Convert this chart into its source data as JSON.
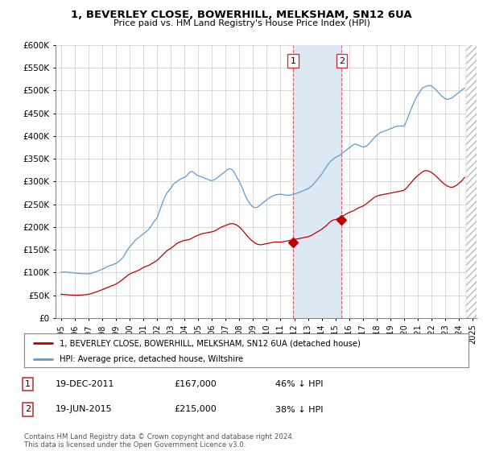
{
  "title": "1, BEVERLEY CLOSE, BOWERHILL, MELKSHAM, SN12 6UA",
  "subtitle": "Price paid vs. HM Land Registry's House Price Index (HPI)",
  "legend_line1": "1, BEVERLEY CLOSE, BOWERHILL, MELKSHAM, SN12 6UA (detached house)",
  "legend_line2": "HPI: Average price, detached house, Wiltshire",
  "table_rows": [
    {
      "num": "1",
      "date": "19-DEC-2011",
      "price": "£167,000",
      "pct": "46% ↓ HPI"
    },
    {
      "num": "2",
      "date": "19-JUN-2015",
      "price": "£215,000",
      "pct": "38% ↓ HPI"
    }
  ],
  "footnote": "Contains HM Land Registry data © Crown copyright and database right 2024.\nThis data is licensed under the Open Government Licence v3.0.",
  "hpi_color": "#5b9bd5",
  "price_color": "#c00000",
  "background_color": "#ffffff",
  "grid_color": "#cccccc",
  "annotation_bg": "#dce9f5",
  "vline_color": "#e06060",
  "ylim": [
    0,
    600000
  ],
  "yticks": [
    0,
    50000,
    100000,
    150000,
    200000,
    250000,
    300000,
    350000,
    400000,
    450000,
    500000,
    550000,
    600000
  ],
  "xlim_start": 1994.6,
  "xlim_end": 2025.3,
  "hatch_start": 2024.5,
  "hpi_data_x": [
    1995.0,
    1995.083,
    1995.167,
    1995.25,
    1995.333,
    1995.417,
    1995.5,
    1995.583,
    1995.667,
    1995.75,
    1995.833,
    1995.917,
    1996.0,
    1996.083,
    1996.167,
    1996.25,
    1996.333,
    1996.417,
    1996.5,
    1996.583,
    1996.667,
    1996.75,
    1996.833,
    1996.917,
    1997.0,
    1997.083,
    1997.167,
    1997.25,
    1997.333,
    1997.417,
    1997.5,
    1997.583,
    1997.667,
    1997.75,
    1997.833,
    1997.917,
    1998.0,
    1998.083,
    1998.167,
    1998.25,
    1998.333,
    1998.417,
    1998.5,
    1998.583,
    1998.667,
    1998.75,
    1998.833,
    1998.917,
    1999.0,
    1999.083,
    1999.167,
    1999.25,
    1999.333,
    1999.417,
    1999.5,
    1999.583,
    1999.667,
    1999.75,
    1999.833,
    1999.917,
    2000.0,
    2000.083,
    2000.167,
    2000.25,
    2000.333,
    2000.417,
    2000.5,
    2000.583,
    2000.667,
    2000.75,
    2000.833,
    2000.917,
    2001.0,
    2001.083,
    2001.167,
    2001.25,
    2001.333,
    2001.417,
    2001.5,
    2001.583,
    2001.667,
    2001.75,
    2001.833,
    2001.917,
    2002.0,
    2002.083,
    2002.167,
    2002.25,
    2002.333,
    2002.417,
    2002.5,
    2002.583,
    2002.667,
    2002.75,
    2002.833,
    2002.917,
    2003.0,
    2003.083,
    2003.167,
    2003.25,
    2003.333,
    2003.417,
    2003.5,
    2003.583,
    2003.667,
    2003.75,
    2003.833,
    2003.917,
    2004.0,
    2004.083,
    2004.167,
    2004.25,
    2004.333,
    2004.417,
    2004.5,
    2004.583,
    2004.667,
    2004.75,
    2004.833,
    2004.917,
    2005.0,
    2005.083,
    2005.167,
    2005.25,
    2005.333,
    2005.417,
    2005.5,
    2005.583,
    2005.667,
    2005.75,
    2005.833,
    2005.917,
    2006.0,
    2006.083,
    2006.167,
    2006.25,
    2006.333,
    2006.417,
    2006.5,
    2006.583,
    2006.667,
    2006.75,
    2006.833,
    2006.917,
    2007.0,
    2007.083,
    2007.167,
    2007.25,
    2007.333,
    2007.417,
    2007.5,
    2007.583,
    2007.667,
    2007.75,
    2007.833,
    2007.917,
    2008.0,
    2008.083,
    2008.167,
    2008.25,
    2008.333,
    2008.417,
    2008.5,
    2008.583,
    2008.667,
    2008.75,
    2008.833,
    2008.917,
    2009.0,
    2009.083,
    2009.167,
    2009.25,
    2009.333,
    2009.417,
    2009.5,
    2009.583,
    2009.667,
    2009.75,
    2009.833,
    2009.917,
    2010.0,
    2010.083,
    2010.167,
    2010.25,
    2010.333,
    2010.417,
    2010.5,
    2010.583,
    2010.667,
    2010.75,
    2010.833,
    2010.917,
    2011.0,
    2011.083,
    2011.167,
    2011.25,
    2011.333,
    2011.417,
    2011.5,
    2011.583,
    2011.667,
    2011.75,
    2011.833,
    2011.917,
    2012.0,
    2012.083,
    2012.167,
    2012.25,
    2012.333,
    2012.417,
    2012.5,
    2012.583,
    2012.667,
    2012.75,
    2012.833,
    2012.917,
    2013.0,
    2013.083,
    2013.167,
    2013.25,
    2013.333,
    2013.417,
    2013.5,
    2013.583,
    2013.667,
    2013.75,
    2013.833,
    2013.917,
    2014.0,
    2014.083,
    2014.167,
    2014.25,
    2014.333,
    2014.417,
    2014.5,
    2014.583,
    2014.667,
    2014.75,
    2014.833,
    2014.917,
    2015.0,
    2015.083,
    2015.167,
    2015.25,
    2015.333,
    2015.417,
    2015.5,
    2015.583,
    2015.667,
    2015.75,
    2015.833,
    2015.917,
    2016.0,
    2016.083,
    2016.167,
    2016.25,
    2016.333,
    2016.417,
    2016.5,
    2016.583,
    2016.667,
    2016.75,
    2016.833,
    2016.917,
    2017.0,
    2017.083,
    2017.167,
    2017.25,
    2017.333,
    2017.417,
    2017.5,
    2017.583,
    2017.667,
    2017.75,
    2017.833,
    2017.917,
    2018.0,
    2018.083,
    2018.167,
    2018.25,
    2018.333,
    2018.417,
    2018.5,
    2018.583,
    2018.667,
    2018.75,
    2018.833,
    2018.917,
    2019.0,
    2019.083,
    2019.167,
    2019.25,
    2019.333,
    2019.417,
    2019.5,
    2019.583,
    2019.667,
    2019.75,
    2019.833,
    2019.917,
    2020.0,
    2020.083,
    2020.167,
    2020.25,
    2020.333,
    2020.417,
    2020.5,
    2020.583,
    2020.667,
    2020.75,
    2020.833,
    2020.917,
    2021.0,
    2021.083,
    2021.167,
    2021.25,
    2021.333,
    2021.417,
    2021.5,
    2021.583,
    2021.667,
    2021.75,
    2021.833,
    2021.917,
    2022.0,
    2022.083,
    2022.167,
    2022.25,
    2022.333,
    2022.417,
    2022.5,
    2022.583,
    2022.667,
    2022.75,
    2022.833,
    2022.917,
    2023.0,
    2023.083,
    2023.167,
    2023.25,
    2023.333,
    2023.417,
    2023.5,
    2023.583,
    2023.667,
    2023.75,
    2023.833,
    2023.917,
    2024.0,
    2024.083,
    2024.167,
    2024.25,
    2024.333,
    2024.417
  ],
  "hpi_data_y": [
    100000,
    100500,
    101000,
    101200,
    101000,
    100800,
    100500,
    100300,
    100000,
    99800,
    99500,
    99200,
    98800,
    98500,
    98200,
    98000,
    97800,
    97600,
    97500,
    97400,
    97300,
    97200,
    97100,
    97000,
    97200,
    97500,
    98000,
    98800,
    99500,
    100200,
    101000,
    102000,
    103000,
    104000,
    105000,
    106000,
    107000,
    108000,
    109500,
    111000,
    112500,
    113500,
    114500,
    115500,
    116000,
    117000,
    118000,
    119000,
    120000,
    121500,
    123000,
    125000,
    127000,
    130000,
    133000,
    137000,
    141000,
    145000,
    149000,
    153000,
    156000,
    159000,
    162000,
    165000,
    168000,
    171000,
    173000,
    175000,
    177000,
    179000,
    181000,
    183000,
    185000,
    187000,
    189000,
    191000,
    193000,
    196000,
    199000,
    203000,
    207000,
    211000,
    214000,
    217000,
    220000,
    227000,
    234000,
    241000,
    248000,
    255000,
    261000,
    267000,
    272000,
    276000,
    279000,
    282000,
    285000,
    289000,
    293000,
    296000,
    298000,
    299000,
    301000,
    303000,
    305000,
    306000,
    307000,
    308000,
    309000,
    311000,
    313000,
    316000,
    319000,
    321000,
    322000,
    322000,
    320000,
    318000,
    316000,
    314000,
    313000,
    312000,
    311000,
    310000,
    309000,
    308000,
    307000,
    306000,
    305000,
    304000,
    303000,
    302000,
    302000,
    303000,
    304000,
    305000,
    307000,
    309000,
    311000,
    313000,
    315000,
    317000,
    319000,
    321000,
    323000,
    325000,
    327000,
    328000,
    328000,
    327000,
    325000,
    322000,
    318000,
    313000,
    308000,
    304000,
    300000,
    295000,
    289000,
    283000,
    276000,
    270000,
    265000,
    260000,
    256000,
    252000,
    249000,
    246000,
    244000,
    243000,
    243000,
    243000,
    244000,
    246000,
    248000,
    250000,
    252000,
    254000,
    256000,
    258000,
    260000,
    262000,
    264000,
    265000,
    267000,
    268000,
    269000,
    270000,
    271000,
    271000,
    272000,
    272000,
    272000,
    272000,
    271000,
    271000,
    270000,
    270000,
    270000,
    270000,
    270000,
    270000,
    271000,
    272000,
    273000,
    273000,
    274000,
    275000,
    276000,
    277000,
    278000,
    279000,
    280000,
    281000,
    282000,
    283000,
    284000,
    286000,
    288000,
    290000,
    292000,
    295000,
    298000,
    301000,
    304000,
    307000,
    310000,
    313000,
    316000,
    320000,
    324000,
    328000,
    332000,
    336000,
    339000,
    342000,
    345000,
    347000,
    349000,
    351000,
    353000,
    354000,
    356000,
    357000,
    358000,
    360000,
    362000,
    364000,
    366000,
    368000,
    370000,
    372000,
    374000,
    376000,
    378000,
    380000,
    381000,
    382000,
    382000,
    381000,
    380000,
    379000,
    378000,
    377000,
    376000,
    376000,
    377000,
    378000,
    380000,
    382000,
    385000,
    388000,
    391000,
    394000,
    396000,
    399000,
    401000,
    403000,
    405000,
    407000,
    408000,
    409000,
    410000,
    411000,
    412000,
    413000,
    414000,
    415000,
    416000,
    417000,
    418000,
    419000,
    420000,
    421000,
    422000,
    422000,
    422000,
    422000,
    422000,
    422000,
    422000,
    426000,
    432000,
    438000,
    445000,
    452000,
    458000,
    464000,
    470000,
    476000,
    481000,
    486000,
    490000,
    494000,
    498000,
    502000,
    505000,
    507000,
    508000,
    509000,
    510000,
    511000,
    511000,
    511000,
    510000,
    508000,
    506000,
    504000,
    502000,
    499000,
    496000,
    493000,
    490000,
    488000,
    486000,
    484000,
    482000,
    481000,
    481000,
    481000,
    482000,
    483000,
    484000,
    486000,
    488000,
    490000,
    492000,
    494000,
    496000,
    498000,
    500000,
    502000,
    504000,
    505000
  ],
  "price_data_x": [
    1995.0,
    1995.083,
    1995.167,
    1995.25,
    1995.333,
    1995.417,
    1995.5,
    1995.583,
    1995.667,
    1995.75,
    1995.833,
    1995.917,
    1996.0,
    1996.083,
    1996.167,
    1996.25,
    1996.333,
    1996.417,
    1996.5,
    1996.583,
    1996.667,
    1996.75,
    1996.833,
    1996.917,
    1997.0,
    1997.083,
    1997.167,
    1997.25,
    1997.333,
    1997.417,
    1997.5,
    1997.583,
    1997.667,
    1997.75,
    1997.833,
    1997.917,
    1998.0,
    1998.083,
    1998.167,
    1998.25,
    1998.333,
    1998.417,
    1998.5,
    1998.583,
    1998.667,
    1998.75,
    1998.833,
    1998.917,
    1999.0,
    1999.083,
    1999.167,
    1999.25,
    1999.333,
    1999.417,
    1999.5,
    1999.583,
    1999.667,
    1999.75,
    1999.833,
    1999.917,
    2000.0,
    2000.083,
    2000.167,
    2000.25,
    2000.333,
    2000.417,
    2000.5,
    2000.583,
    2000.667,
    2000.75,
    2000.833,
    2000.917,
    2001.0,
    2001.083,
    2001.167,
    2001.25,
    2001.333,
    2001.417,
    2001.5,
    2001.583,
    2001.667,
    2001.75,
    2001.833,
    2001.917,
    2002.0,
    2002.083,
    2002.167,
    2002.25,
    2002.333,
    2002.417,
    2002.5,
    2002.583,
    2002.667,
    2002.75,
    2002.833,
    2002.917,
    2003.0,
    2003.083,
    2003.167,
    2003.25,
    2003.333,
    2003.417,
    2003.5,
    2003.583,
    2003.667,
    2003.75,
    2003.833,
    2003.917,
    2004.0,
    2004.083,
    2004.167,
    2004.25,
    2004.333,
    2004.417,
    2004.5,
    2004.583,
    2004.667,
    2004.75,
    2004.833,
    2004.917,
    2005.0,
    2005.083,
    2005.167,
    2005.25,
    2005.333,
    2005.417,
    2005.5,
    2005.583,
    2005.667,
    2005.75,
    2005.833,
    2005.917,
    2006.0,
    2006.083,
    2006.167,
    2006.25,
    2006.333,
    2006.417,
    2006.5,
    2006.583,
    2006.667,
    2006.75,
    2006.833,
    2006.917,
    2007.0,
    2007.083,
    2007.167,
    2007.25,
    2007.333,
    2007.417,
    2007.5,
    2007.583,
    2007.667,
    2007.75,
    2007.833,
    2007.917,
    2008.0,
    2008.083,
    2008.167,
    2008.25,
    2008.333,
    2008.417,
    2008.5,
    2008.583,
    2008.667,
    2008.75,
    2008.833,
    2008.917,
    2009.0,
    2009.083,
    2009.167,
    2009.25,
    2009.333,
    2009.417,
    2009.5,
    2009.583,
    2009.667,
    2009.75,
    2009.833,
    2009.917,
    2010.0,
    2010.083,
    2010.167,
    2010.25,
    2010.333,
    2010.417,
    2010.5,
    2010.583,
    2010.667,
    2010.75,
    2010.833,
    2010.917,
    2011.0,
    2011.083,
    2011.167,
    2011.25,
    2011.333,
    2011.417,
    2011.5,
    2011.583,
    2011.667,
    2011.75,
    2011.833,
    2011.917,
    2012.0,
    2012.083,
    2012.167,
    2012.25,
    2012.333,
    2012.417,
    2012.5,
    2012.583,
    2012.667,
    2012.75,
    2012.833,
    2012.917,
    2013.0,
    2013.083,
    2013.167,
    2013.25,
    2013.333,
    2013.417,
    2013.5,
    2013.583,
    2013.667,
    2013.75,
    2013.833,
    2013.917,
    2014.0,
    2014.083,
    2014.167,
    2014.25,
    2014.333,
    2014.417,
    2014.5,
    2014.583,
    2014.667,
    2014.75,
    2014.833,
    2014.917,
    2015.0,
    2015.083,
    2015.167,
    2015.25,
    2015.333,
    2015.417,
    2015.5,
    2015.583,
    2015.667,
    2015.75,
    2015.833,
    2015.917,
    2016.0,
    2016.083,
    2016.167,
    2016.25,
    2016.333,
    2016.417,
    2016.5,
    2016.583,
    2016.667,
    2016.75,
    2016.833,
    2016.917,
    2017.0,
    2017.083,
    2017.167,
    2017.25,
    2017.333,
    2017.417,
    2017.5,
    2017.583,
    2017.667,
    2017.75,
    2017.833,
    2017.917,
    2018.0,
    2018.083,
    2018.167,
    2018.25,
    2018.333,
    2018.417,
    2018.5,
    2018.583,
    2018.667,
    2018.75,
    2018.833,
    2018.917,
    2019.0,
    2019.083,
    2019.167,
    2019.25,
    2019.333,
    2019.417,
    2019.5,
    2019.583,
    2019.667,
    2019.75,
    2019.833,
    2019.917,
    2020.0,
    2020.083,
    2020.167,
    2020.25,
    2020.333,
    2020.417,
    2020.5,
    2020.583,
    2020.667,
    2020.75,
    2020.833,
    2020.917,
    2021.0,
    2021.083,
    2021.167,
    2021.25,
    2021.333,
    2021.417,
    2021.5,
    2021.583,
    2021.667,
    2021.75,
    2021.833,
    2021.917,
    2022.0,
    2022.083,
    2022.167,
    2022.25,
    2022.333,
    2022.417,
    2022.5,
    2022.583,
    2022.667,
    2022.75,
    2022.833,
    2022.917,
    2023.0,
    2023.083,
    2023.167,
    2023.25,
    2023.333,
    2023.417,
    2023.5,
    2023.583,
    2023.667,
    2023.75,
    2023.833,
    2023.917,
    2024.0,
    2024.083,
    2024.167,
    2024.25,
    2024.333,
    2024.417
  ],
  "price_data_y": [
    52000,
    51800,
    51600,
    51400,
    51200,
    51000,
    50800,
    50600,
    50500,
    50400,
    50300,
    50200,
    50100,
    50000,
    50000,
    50000,
    50100,
    50200,
    50400,
    50600,
    50800,
    51000,
    51200,
    51500,
    52000,
    52500,
    53200,
    54000,
    54800,
    55600,
    56500,
    57400,
    58300,
    59200,
    60200,
    61200,
    62200,
    63300,
    64300,
    65300,
    66200,
    67100,
    68100,
    69100,
    70100,
    71200,
    72300,
    73400,
    74500,
    76000,
    77500,
    79200,
    81000,
    83000,
    85000,
    87000,
    89000,
    91000,
    93000,
    95000,
    96500,
    97800,
    99000,
    100000,
    101000,
    102000,
    103000,
    104000,
    105000,
    106500,
    108000,
    109500,
    111000,
    112000,
    113000,
    114000,
    115000,
    116000,
    117500,
    119000,
    120500,
    122000,
    123500,
    125000,
    126500,
    129000,
    131500,
    134000,
    136500,
    139000,
    141500,
    144000,
    146500,
    148500,
    150000,
    151500,
    153000,
    155000,
    157000,
    159000,
    161000,
    163000,
    164500,
    166000,
    167000,
    168000,
    169000,
    170000,
    170500,
    171000,
    171500,
    172000,
    172500,
    173500,
    174500,
    176000,
    177500,
    179000,
    180000,
    181000,
    182000,
    183000,
    184000,
    185000,
    185500,
    186000,
    186500,
    187000,
    187500,
    188000,
    188500,
    189000,
    189500,
    190000,
    191000,
    192000,
    193500,
    195000,
    196500,
    198000,
    199500,
    200500,
    201500,
    202500,
    203500,
    204500,
    205500,
    206500,
    207000,
    207500,
    207500,
    207000,
    206000,
    205000,
    203500,
    202000,
    200000,
    197500,
    195000,
    192000,
    189000,
    186000,
    183000,
    180000,
    177000,
    174500,
    172000,
    170000,
    168000,
    166000,
    164500,
    163000,
    162000,
    161500,
    161000,
    161000,
    161500,
    162000,
    162500,
    163000,
    163500,
    164000,
    164500,
    165000,
    165500,
    166000,
    166500,
    167000,
    167000,
    167000,
    167000,
    167000,
    167000,
    167000,
    167500,
    168000,
    168500,
    169000,
    169500,
    170000,
    170500,
    171000,
    171500,
    172000,
    172500,
    173000,
    173500,
    174000,
    174500,
    175000,
    175500,
    176000,
    176500,
    177000,
    177500,
    178000,
    178500,
    179500,
    180500,
    181500,
    183000,
    184500,
    186000,
    187500,
    189000,
    190500,
    192000,
    193500,
    195000,
    197000,
    199000,
    201000,
    203000,
    205500,
    208000,
    210500,
    212500,
    214000,
    215000,
    216000,
    216500,
    217000,
    218500,
    220000,
    221500,
    223000,
    224000,
    225000,
    226500,
    228000,
    229500,
    231000,
    232000,
    233000,
    234000,
    235000,
    236000,
    237500,
    239000,
    240500,
    242000,
    243000,
    244000,
    245000,
    246000,
    247500,
    249000,
    251000,
    253000,
    255000,
    257000,
    259000,
    261000,
    263000,
    265000,
    266500,
    267500,
    268500,
    269500,
    270000,
    270500,
    271000,
    271500,
    272000,
    272500,
    273000,
    273500,
    274000,
    274500,
    275000,
    275500,
    276000,
    276500,
    277000,
    277500,
    278000,
    278500,
    279000,
    279500,
    280000,
    281000,
    283000,
    285500,
    288000,
    291000,
    294000,
    297000,
    300000,
    303000,
    306000,
    308500,
    311000,
    313000,
    315000,
    317000,
    319000,
    321000,
    322500,
    323500,
    324000,
    324000,
    323500,
    322500,
    321500,
    320000,
    318000,
    316000,
    314000,
    312000,
    309500,
    307000,
    304500,
    302000,
    299500,
    297000,
    295000,
    293000,
    291500,
    290000,
    289000,
    288000,
    287500,
    287500,
    288000,
    289000,
    290500,
    292000,
    294000,
    296000,
    298000,
    300500,
    303000,
    306000,
    309000
  ]
}
